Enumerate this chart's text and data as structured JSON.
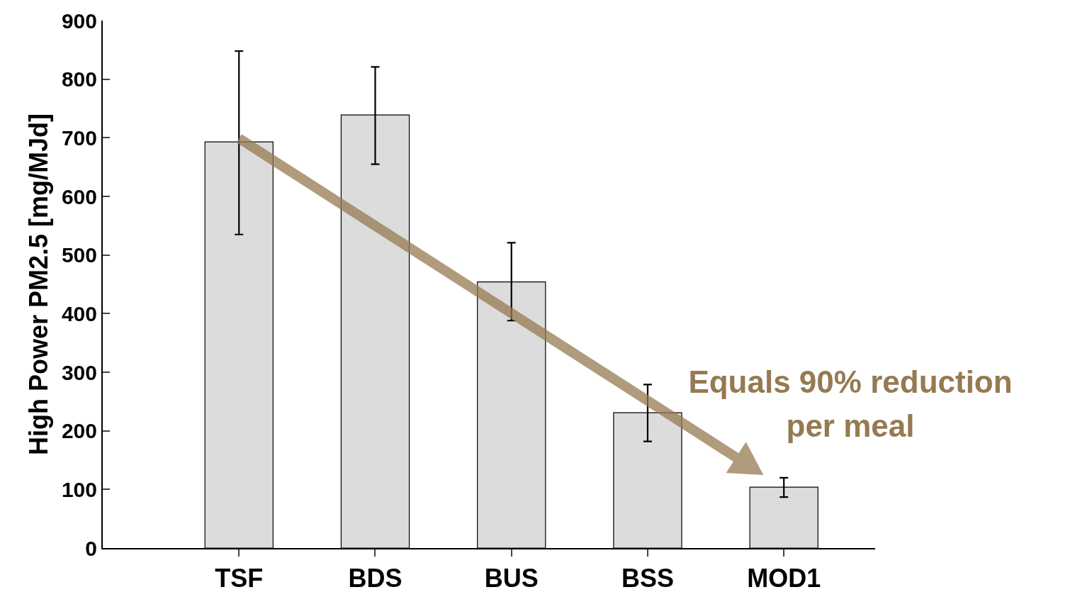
{
  "chart_data": {
    "type": "bar",
    "ylabel": "High Power PM2.5 [mg/MJd]",
    "categories": [
      "TSF",
      "BDS",
      "BUS",
      "BSS",
      "MOD1"
    ],
    "values": [
      693,
      739,
      454,
      231,
      104
    ],
    "errors": [
      [
        535,
        848
      ],
      [
        655,
        821
      ],
      [
        388,
        521
      ],
      [
        182,
        279
      ],
      [
        87,
        120
      ]
    ],
    "color": "#dcdcdc",
    "ylim": [
      0,
      900
    ],
    "yticks": [
      0,
      100,
      200,
      300,
      400,
      500,
      600,
      700,
      800,
      900
    ],
    "grid": false,
    "annotations": [
      "Equals 90% reduction per meal"
    ]
  }
}
